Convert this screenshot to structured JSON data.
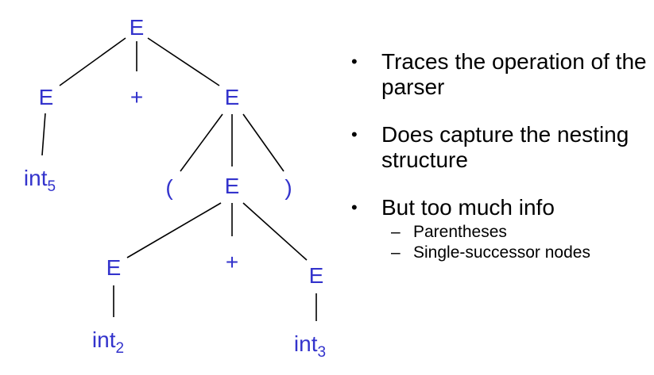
{
  "colors": {
    "node": "#3333cc",
    "edge": "#000000",
    "text": "#000000"
  },
  "tree": {
    "nodes": [
      {
        "id": "n_root",
        "label": "E",
        "sub": ""
      },
      {
        "id": "n_e_left",
        "label": "E",
        "sub": ""
      },
      {
        "id": "n_plus_top",
        "label": "+",
        "sub": ""
      },
      {
        "id": "n_e_right",
        "label": "E",
        "sub": ""
      },
      {
        "id": "n_int5",
        "label": "int",
        "sub": "5"
      },
      {
        "id": "n_lparen",
        "label": "(",
        "sub": ""
      },
      {
        "id": "n_e_mid",
        "label": "E",
        "sub": ""
      },
      {
        "id": "n_rparen",
        "label": ")",
        "sub": ""
      },
      {
        "id": "n_e_ll",
        "label": "E",
        "sub": ""
      },
      {
        "id": "n_plus_mid",
        "label": "+",
        "sub": ""
      },
      {
        "id": "n_e_lr",
        "label": "E",
        "sub": ""
      },
      {
        "id": "n_int2",
        "label": "int",
        "sub": "2"
      },
      {
        "id": "n_int3",
        "label": "int",
        "sub": "3"
      }
    ],
    "edges": [
      [
        "n_root",
        "n_e_left"
      ],
      [
        "n_root",
        "n_plus_top"
      ],
      [
        "n_root",
        "n_e_right"
      ],
      [
        "n_e_left",
        "n_int5"
      ],
      [
        "n_e_right",
        "n_lparen"
      ],
      [
        "n_e_right",
        "n_e_mid"
      ],
      [
        "n_e_right",
        "n_rparen"
      ],
      [
        "n_e_mid",
        "n_e_ll"
      ],
      [
        "n_e_mid",
        "n_plus_mid"
      ],
      [
        "n_e_mid",
        "n_e_lr"
      ],
      [
        "n_e_ll",
        "n_int2"
      ],
      [
        "n_e_lr",
        "n_int3"
      ]
    ]
  },
  "bullets": [
    {
      "text": "Traces the operation of the parser",
      "subs": []
    },
    {
      "text": "Does capture the nesting structure",
      "subs": []
    },
    {
      "text": "But too much info",
      "subs": [
        "Parentheses",
        "Single-successor nodes"
      ]
    }
  ]
}
